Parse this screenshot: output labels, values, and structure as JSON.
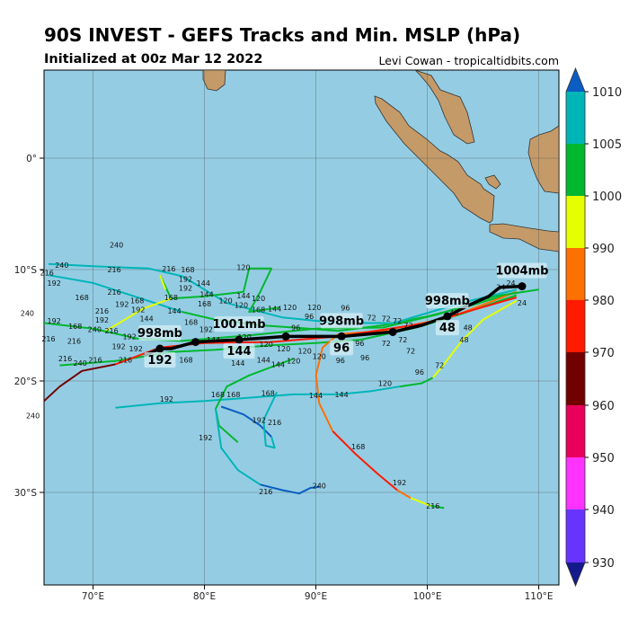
{
  "header": {
    "title": "90S INVEST - GEFS Tracks and Min. MSLP (hPa)",
    "subtitle": "Initialized at 00z Mar 12 2022",
    "credit": "Levi Cowan - tropicaltidbits.com"
  },
  "map": {
    "ocean_color": "#94cde3",
    "land_color": "#c49a68",
    "lat_labels": [
      {
        "lat": 0,
        "text": "0°"
      },
      {
        "lat": -10,
        "text": "10°S"
      },
      {
        "lat": -20,
        "text": "20°S"
      },
      {
        "lat": -30,
        "text": "30°S"
      }
    ],
    "lon_labels": [
      {
        "lon": 70,
        "text": "70°E"
      },
      {
        "lon": 80,
        "text": "80°E"
      },
      {
        "lon": 90,
        "text": "90°E"
      },
      {
        "lon": 100,
        "text": "100°E"
      },
      {
        "lon": 110,
        "text": "110°E"
      }
    ]
  },
  "colorbar": {
    "ticks": [
      "930",
      "940",
      "950",
      "960",
      "970",
      "980",
      "990",
      "1000",
      "1005",
      "1010"
    ],
    "colors": [
      "#6633ff",
      "#ff33ff",
      "#e8005a",
      "#720000",
      "#ff1a00",
      "#ff7000",
      "#e5ff00",
      "#00b82e",
      "#00b5b8"
    ],
    "over_color": "#0a5dc2",
    "under_color": "#141a8a"
  },
  "members": [
    {
      "color": "#00b82e",
      "points": [
        [
          108,
          -12
        ],
        [
          104,
          -13.2
        ],
        [
          100,
          -14.2
        ],
        [
          96,
          -15
        ],
        [
          92,
          -15.5
        ],
        [
          88,
          -15.2
        ],
        [
          85,
          -15
        ],
        [
          81,
          -14.5
        ],
        [
          78,
          -13.8
        ]
      ]
    },
    {
      "color": "#00b5b8",
      "points": [
        [
          78,
          -13.8
        ],
        [
          74,
          -12.5
        ],
        [
          70,
          -11.2
        ],
        [
          66,
          -10.5
        ]
      ]
    },
    {
      "color": "#00b5b8",
      "points": [
        [
          66,
          -9.5
        ],
        [
          70,
          -9.7
        ],
        [
          75,
          -9.9
        ],
        [
          78,
          -10.6
        ],
        [
          82,
          -13
        ],
        [
          87,
          -14.3
        ],
        [
          92,
          -14.8
        ],
        [
          97,
          -14.8
        ],
        [
          103,
          -13
        ],
        [
          108,
          -11.8
        ]
      ]
    },
    {
      "color": "#00b82e",
      "points": [
        [
          108,
          -12.3
        ],
        [
          103,
          -14
        ],
        [
          99,
          -15.2
        ],
        [
          94,
          -16.3
        ],
        [
          90,
          -16.6
        ],
        [
          86,
          -16.8
        ],
        [
          81,
          -17.2
        ],
        [
          77,
          -17.4
        ],
        [
          72,
          -18.2
        ],
        [
          67,
          -18.6
        ]
      ]
    },
    {
      "color": "#ff7000",
      "points": [
        [
          108,
          -12
        ],
        [
          102,
          -14.3
        ],
        [
          96,
          -15.5
        ],
        [
          92,
          -15.8
        ],
        [
          90.6,
          -17
        ],
        [
          90,
          -19.5
        ],
        [
          90.3,
          -22
        ],
        [
          91.5,
          -24.5
        ]
      ]
    },
    {
      "color": "#ff1a00",
      "points": [
        [
          91.5,
          -24.5
        ],
        [
          93.5,
          -26.5
        ],
        [
          95.5,
          -28.3
        ],
        [
          97.3,
          -29.8
        ]
      ]
    },
    {
      "color": "#ff7000",
      "points": [
        [
          97.3,
          -29.8
        ],
        [
          98.5,
          -30.5
        ]
      ]
    },
    {
      "color": "#e5ff00",
      "points": [
        [
          98.5,
          -30.5
        ],
        [
          100.3,
          -31.2
        ]
      ]
    },
    {
      "color": "#00b82e",
      "points": [
        [
          100.3,
          -31.2
        ],
        [
          101.5,
          -31.4
        ]
      ]
    },
    {
      "color": "#ff1a00",
      "points": [
        [
          108,
          -12.5
        ],
        [
          100,
          -14.8
        ],
        [
          92,
          -16
        ],
        [
          86,
          -16.5
        ],
        [
          80,
          -16.6
        ],
        [
          76,
          -17
        ],
        [
          72,
          -18.5
        ]
      ]
    },
    {
      "color": "#720000",
      "points": [
        [
          72,
          -18.5
        ],
        [
          69,
          -19.1
        ],
        [
          67,
          -20.5
        ],
        [
          65.6,
          -21.8
        ]
      ]
    },
    {
      "color": "#00b5b8",
      "points": [
        [
          72,
          -22.4
        ],
        [
          76,
          -22
        ],
        [
          80,
          -21.8
        ],
        [
          84,
          -21.5
        ],
        [
          88,
          -21.2
        ],
        [
          92,
          -21.2
        ],
        [
          95,
          -20.9
        ],
        [
          97.5,
          -20.5
        ]
      ]
    },
    {
      "color": "#00b82e",
      "points": [
        [
          97.5,
          -20.5
        ],
        [
          99.5,
          -20.2
        ],
        [
          100.5,
          -19.7
        ]
      ]
    },
    {
      "color": "#e5ff00",
      "points": [
        [
          100.5,
          -19.7
        ],
        [
          101.5,
          -18.5
        ],
        [
          103,
          -16.5
        ],
        [
          105,
          -14.5
        ],
        [
          108,
          -12.8
        ]
      ]
    },
    {
      "color": "#00b82e",
      "points": [
        [
          88,
          -18
        ],
        [
          84,
          -19.5
        ],
        [
          82,
          -20.5
        ],
        [
          81,
          -22.5
        ],
        [
          81.3,
          -24
        ],
        [
          83,
          -25.5
        ]
      ]
    },
    {
      "color": "#00b5b8",
      "points": [
        [
          81,
          -22.5
        ],
        [
          81.5,
          -26
        ],
        [
          83,
          -28
        ],
        [
          85,
          -29.3
        ]
      ]
    },
    {
      "color": "#0a5dc2",
      "points": [
        [
          85,
          -29.3
        ],
        [
          87,
          -29.8
        ],
        [
          88.5,
          -30.1
        ],
        [
          89.5,
          -29.6
        ],
        [
          90.3,
          -29.5
        ]
      ]
    },
    {
      "color": "#0a5dc2",
      "points": [
        [
          81.5,
          -22.3
        ],
        [
          83.5,
          -23
        ],
        [
          85,
          -24
        ],
        [
          86,
          -25
        ]
      ]
    },
    {
      "color": "#00b5b8",
      "points": [
        [
          86,
          -25
        ],
        [
          86.3,
          -26
        ],
        [
          85.5,
          -25.8
        ],
        [
          85.3,
          -23.5
        ],
        [
          86.5,
          -21
        ]
      ]
    },
    {
      "color": "#00b82e",
      "points": [
        [
          86.7,
          -13.4
        ],
        [
          84,
          -13.8
        ],
        [
          85,
          -12
        ],
        [
          86,
          -9.9
        ],
        [
          84,
          -9.9
        ],
        [
          83.5,
          -12
        ],
        [
          80,
          -12.4
        ],
        [
          77,
          -12.6
        ],
        [
          76,
          -10.5
        ]
      ]
    },
    {
      "color": "#e5ff00",
      "points": [
        [
          76,
          -10.5
        ],
        [
          76.5,
          -11.8
        ]
      ]
    },
    {
      "color": "#e5ff00",
      "points": [
        [
          77,
          -12.6
        ],
        [
          74.5,
          -13.5
        ],
        [
          72.5,
          -14.7
        ],
        [
          71,
          -15.6
        ]
      ]
    },
    {
      "color": "#00b82e",
      "points": [
        [
          65.6,
          -14.8
        ],
        [
          70,
          -15.3
        ],
        [
          74,
          -16.2
        ],
        [
          78,
          -16.4
        ],
        [
          84,
          -15.9
        ],
        [
          90,
          -15.3
        ],
        [
          96,
          -15.2
        ],
        [
          101,
          -14
        ],
        [
          106,
          -12.4
        ],
        [
          110,
          -11.8
        ]
      ]
    }
  ],
  "mean_track": {
    "color": "#000000",
    "points": [
      [
        108.5,
        -11.5
      ],
      [
        106.5,
        -11.6
      ],
      [
        105.5,
        -12.4
      ],
      [
        103.5,
        -13.3
      ],
      [
        101.8,
        -14.2
      ],
      [
        99.5,
        -15
      ],
      [
        96.9,
        -15.6
      ],
      [
        92.3,
        -16
      ],
      [
        87.3,
        -16
      ],
      [
        83.1,
        -16.3
      ],
      [
        79.2,
        -16.5
      ],
      [
        77,
        -17.1
      ],
      [
        76,
        -17.1
      ],
      [
        74.6,
        -17.7
      ]
    ],
    "markers": [
      [
        108.5,
        -11.5
      ],
      [
        101.8,
        -14.2
      ],
      [
        96.9,
        -15.6
      ],
      [
        92.3,
        -16
      ],
      [
        87.3,
        -16
      ],
      [
        83.1,
        -16.3
      ],
      [
        79.2,
        -16.5
      ],
      [
        76,
        -17.1
      ]
    ],
    "labels": [
      {
        "lon": 108.5,
        "lat": -11.5,
        "pressure": "1004mb",
        "hour": ""
      },
      {
        "lon": 101.8,
        "lat": -14.2,
        "pressure": "998mb",
        "hour": "48"
      },
      {
        "lon": 92.3,
        "lat": -16.0,
        "pressure": "998mb",
        "hour": "96"
      },
      {
        "lon": 83.1,
        "lat": -16.3,
        "pressure": "1001mb",
        "hour": "144"
      },
      {
        "lon": 76.0,
        "lat": -17.1,
        "pressure": "998mb",
        "hour": "192"
      }
    ]
  },
  "hour_labels": [
    [
      "240",
      72.1,
      -7.8
    ],
    [
      "240",
      67.2,
      -9.6
    ],
    [
      "216",
      66.1,
      -10.1
    ],
    [
      "216",
      71.9,
      -10.0
    ],
    [
      "216",
      76.8,
      -9.9
    ],
    [
      "168",
      78.5,
      -10.0
    ],
    [
      "192",
      78.3,
      -10.3
    ],
    [
      "192",
      66.5,
      -11.2
    ],
    [
      "144",
      79.9,
      -11.2
    ],
    [
      "192",
      78.3,
      -11.1
    ],
    [
      "120",
      83.5,
      -9.8
    ],
    [
      "168",
      69,
      -12.5
    ],
    [
      "216",
      71.9,
      -12.0
    ],
    [
      "168",
      77,
      -12.5
    ],
    [
      "144",
      80.2,
      -12.2
    ],
    [
      "168",
      80,
      -12.5
    ],
    [
      "192",
      72.6,
      -13.1
    ],
    [
      "168",
      73.4,
      -12.8
    ],
    [
      "192",
      73.2,
      -13.2
    ],
    [
      "120",
      81.9,
      -12.8
    ],
    [
      "120",
      83.3,
      -13.2
    ],
    [
      "144",
      83.5,
      -12.9
    ],
    [
      "120",
      83.6,
      -12.6
    ],
    [
      "240",
      64.1,
      -13.9
    ],
    [
      "216",
      70.8,
      -13.7
    ],
    [
      "144",
      77.3,
      -13.7
    ],
    [
      "144",
      74.4,
      -14.1
    ],
    [
      "192",
      70.8,
      -14.5
    ],
    [
      "168",
      78,
      -14.7
    ],
    [
      "192",
      66.5,
      -14.6
    ],
    [
      "168",
      68.4,
      -15.1
    ],
    [
      "240",
      69.9,
      -15.2
    ],
    [
      "216",
      70.3,
      -15.1
    ],
    [
      "192",
      80.0,
      -14.5
    ],
    [
      "168",
      84.5,
      -13.6
    ],
    [
      "144",
      86.3,
      -13.5
    ],
    [
      "120",
      87.1,
      -13.4
    ],
    [
      "96",
      89.4,
      -14.2
    ],
    [
      "120",
      90.3,
      -14.2
    ],
    [
      "96",
      92.5,
      -14.3
    ],
    [
      "72",
      95,
      -14.3
    ],
    [
      "72",
      96.3,
      -14.4
    ],
    [
      "72",
      97.3,
      -14.6
    ],
    [
      "96",
      88.2,
      -15.2
    ],
    [
      "216",
      66,
      -16.2
    ],
    [
      "216",
      68.3,
      -16.4
    ],
    [
      "192",
      72.3,
      -16.9
    ],
    [
      "192",
      73.5,
      -17.1
    ],
    [
      "192",
      74.2,
      -16.6
    ],
    [
      "144",
      80.8,
      -15.9
    ],
    [
      "120",
      83.6,
      -16.6
    ],
    [
      "120",
      85.2,
      -16.7
    ],
    [
      "120",
      87.1,
      -17.1
    ],
    [
      "120",
      89,
      -17.3
    ],
    [
      "120",
      90.3,
      -17.8
    ],
    [
      "96",
      92.2,
      -17.1
    ],
    [
      "96",
      93.6,
      -16.6
    ],
    [
      "72",
      96.3,
      -16.6
    ],
    [
      "72",
      97.8,
      -16.3
    ],
    [
      "72",
      98.5,
      -17.3
    ],
    [
      "48",
      103.3,
      -15.2
    ],
    [
      "48",
      103.3,
      -16.3
    ],
    [
      "216",
      67.5,
      -18.0
    ],
    [
      "240",
      68.5,
      -18.4
    ],
    [
      "216",
      70.2,
      -18.1
    ],
    [
      "216",
      72.9,
      -18.1
    ],
    [
      "168",
      78,
      -18.1
    ],
    [
      "144",
      85.3,
      -18.1
    ],
    [
      "144",
      83,
      -18.0
    ],
    [
      "144",
      86.6,
      -18.5
    ],
    [
      "120",
      88,
      -18.2
    ],
    [
      "96",
      94.4,
      -17.9
    ],
    [
      "72",
      101.1,
      -18.6
    ],
    [
      "96",
      99.3,
      -19.2
    ],
    [
      "120",
      96.2,
      -20.2
    ],
    [
      "240",
      64.6,
      -23.1
    ],
    [
      "192",
      76.6,
      -21.6
    ],
    [
      "168",
      81.2,
      -21.2
    ],
    [
      "168",
      82.6,
      -21.2
    ],
    [
      "168",
      85.7,
      -21.1
    ],
    [
      "144",
      90,
      -21.3
    ],
    [
      "144",
      92.3,
      -21.2
    ],
    [
      "192",
      80.1,
      -25.1
    ],
    [
      "192",
      84.9,
      -23.5
    ],
    [
      "216",
      85.5,
      -23.7
    ],
    [
      "168",
      93.8,
      -25.9
    ],
    [
      "192",
      97.5,
      -29.1
    ],
    [
      "216",
      100.5,
      -31.2
    ],
    [
      "216",
      85.5,
      -29.9
    ],
    [
      "240",
      90.3,
      -29.4
    ],
    [
      "24",
      107.5,
      -11.2
    ],
    [
      "24",
      107,
      -11.3
    ],
    [
      "24",
      108.5,
      -13
    ],
    [
      "48",
      102,
      -13.6
    ],
    [
      "72",
      98.3,
      -15.0
    ]
  ]
}
